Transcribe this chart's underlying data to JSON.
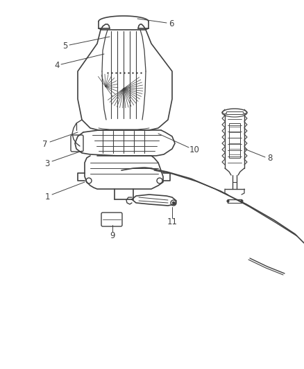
{
  "bg_color": "#ffffff",
  "line_color": "#404040",
  "figsize": [
    4.38,
    5.33
  ],
  "dpi": 100
}
